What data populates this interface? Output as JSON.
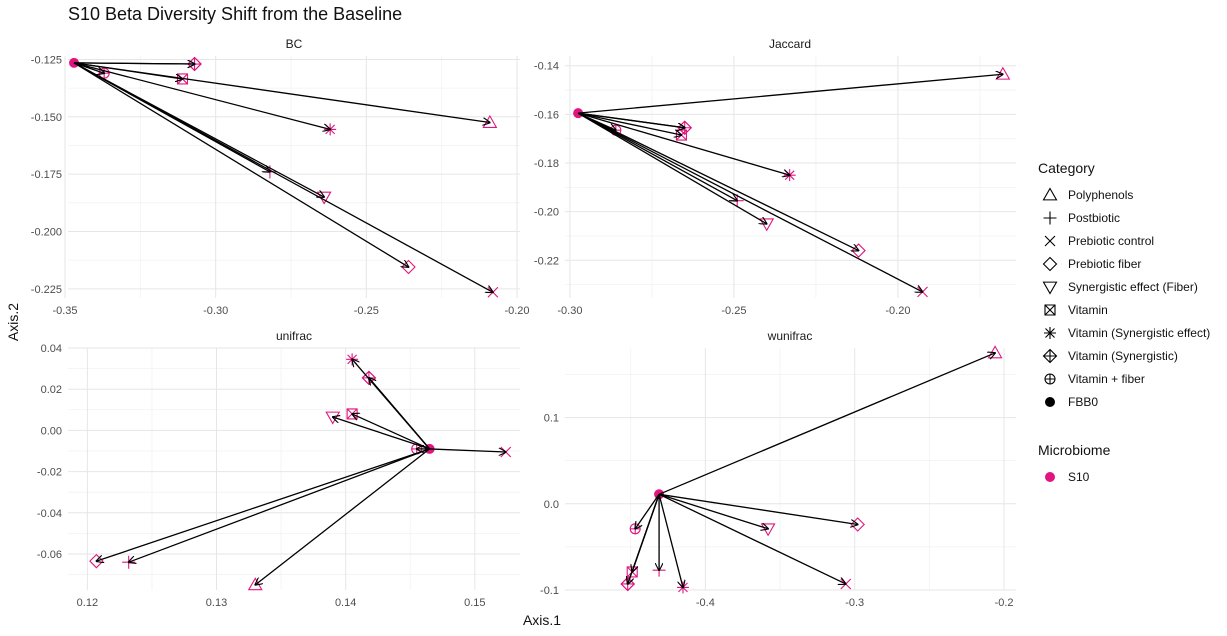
{
  "title": "S10 Beta Diversity Shift from the Baseline",
  "xlabel": "Axis.1",
  "ylabel": "Axis.2",
  "colors": {
    "point": "#e0157f",
    "arrow": "#000000",
    "grid_major": "#e6e6e6",
    "grid_minor": "#f2f2f2"
  },
  "legend": {
    "category_title": "Category",
    "categories": [
      {
        "label": "Polyphenols",
        "shape": "triangle-up"
      },
      {
        "label": "Postbiotic",
        "shape": "plus"
      },
      {
        "label": "Prebiotic control",
        "shape": "cross"
      },
      {
        "label": "Prebiotic fiber",
        "shape": "diamond"
      },
      {
        "label": "Synergistic effect (Fiber)",
        "shape": "triangle-down"
      },
      {
        "label": "Vitamin",
        "shape": "square-cross"
      },
      {
        "label": "Vitamin (Synergistic effect)",
        "shape": "asterisk"
      },
      {
        "label": "Vitamin (Synergistic)",
        "shape": "diamond-plus"
      },
      {
        "label": "Vitamin + fiber",
        "shape": "circle-plus"
      },
      {
        "label": "FBB0",
        "shape": "dot"
      }
    ],
    "microbiome_title": "Microbiome",
    "microbiome": [
      {
        "label": "S10",
        "color": "#e0157f"
      }
    ]
  },
  "chart_data": [
    {
      "type": "scatter",
      "panel": "BC",
      "xlim": [
        -0.349,
        -0.199
      ],
      "ylim": [
        -0.229,
        -0.1235
      ],
      "xticks": [
        -0.35,
        -0.3,
        -0.25,
        -0.2
      ],
      "xtick_labels": [
        "-0.35",
        "-0.30",
        "-0.25",
        "-0.20"
      ],
      "yticks": [
        -0.125,
        -0.15,
        -0.175,
        -0.2,
        -0.225
      ],
      "ytick_labels": [
        "-0.125",
        "-0.150",
        "-0.175",
        "-0.200",
        "-0.225"
      ],
      "baseline": {
        "x": -0.347,
        "y": -0.1265
      },
      "points": [
        {
          "category": "Polyphenols",
          "x": -0.209,
          "y": -0.1525
        },
        {
          "category": "Postbiotic",
          "x": -0.282,
          "y": -0.174
        },
        {
          "category": "Prebiotic control",
          "x": -0.208,
          "y": -0.2265
        },
        {
          "category": "Prebiotic fiber",
          "x": -0.307,
          "y": -0.127
        },
        {
          "category": "Prebiotic fiber",
          "x": -0.236,
          "y": -0.2155
        },
        {
          "category": "Synergistic effect (Fiber)",
          "x": -0.264,
          "y": -0.185
        },
        {
          "category": "Vitamin",
          "x": -0.311,
          "y": -0.1335
        },
        {
          "category": "Vitamin (Synergistic effect)",
          "x": -0.262,
          "y": -0.1555
        },
        {
          "category": "Vitamin (Synergistic)",
          "x": -0.307,
          "y": -0.127
        },
        {
          "category": "Vitamin + fiber",
          "x": -0.337,
          "y": -0.131
        }
      ]
    },
    {
      "type": "scatter",
      "panel": "Jaccard",
      "xlim": [
        -0.3015,
        -0.164
      ],
      "ylim": [
        -0.2355,
        -0.136
      ],
      "xticks": [
        -0.3,
        -0.25,
        -0.2
      ],
      "xtick_labels": [
        "-0.30",
        "-0.25",
        "-0.20"
      ],
      "yticks": [
        -0.14,
        -0.16,
        -0.18,
        -0.2,
        -0.22
      ],
      "ytick_labels": [
        "-0.14",
        "-0.16",
        "-0.18",
        "-0.20",
        "-0.22"
      ],
      "baseline": {
        "x": -0.2975,
        "y": -0.1595
      },
      "points": [
        {
          "category": "Polyphenols",
          "x": -0.168,
          "y": -0.1435
        },
        {
          "category": "Postbiotic",
          "x": -0.249,
          "y": -0.1955
        },
        {
          "category": "Prebiotic control",
          "x": -0.1925,
          "y": -0.233
        },
        {
          "category": "Prebiotic fiber",
          "x": -0.265,
          "y": -0.1655
        },
        {
          "category": "Prebiotic fiber",
          "x": -0.212,
          "y": -0.216
        },
        {
          "category": "Synergistic effect (Fiber)",
          "x": -0.24,
          "y": -0.205
        },
        {
          "category": "Vitamin",
          "x": -0.266,
          "y": -0.1685
        },
        {
          "category": "Vitamin (Synergistic effect)",
          "x": -0.233,
          "y": -0.185
        },
        {
          "category": "Vitamin (Synergistic)",
          "x": -0.265,
          "y": -0.1655
        },
        {
          "category": "Vitamin + fiber",
          "x": -0.286,
          "y": -0.1665
        }
      ]
    },
    {
      "type": "scatter",
      "panel": "unifrac",
      "xlim": [
        0.1185,
        0.1535
      ],
      "ylim": [
        -0.0775,
        0.04
      ],
      "xticks": [
        0.12,
        0.13,
        0.14,
        0.15
      ],
      "xtick_labels": [
        "0.12",
        "0.13",
        "0.14",
        "0.15"
      ],
      "yticks": [
        0.04,
        0.02,
        0.0,
        -0.02,
        -0.04,
        -0.06
      ],
      "ytick_labels": [
        "0.04",
        "0.02",
        "0.00",
        "-0.02",
        "-0.04",
        "-0.06"
      ],
      "baseline": {
        "x": 0.1465,
        "y": -0.009
      },
      "points": [
        {
          "category": "Polyphenols",
          "x": 0.133,
          "y": -0.075
        },
        {
          "category": "Postbiotic",
          "x": 0.1232,
          "y": -0.064
        },
        {
          "category": "Prebiotic control",
          "x": 0.1524,
          "y": -0.0105
        },
        {
          "category": "Prebiotic fiber",
          "x": 0.1207,
          "y": -0.0635
        },
        {
          "category": "Prebiotic fiber",
          "x": 0.1418,
          "y": 0.0255
        },
        {
          "category": "Synergistic effect (Fiber)",
          "x": 0.139,
          "y": 0.0065
        },
        {
          "category": "Vitamin",
          "x": 0.1405,
          "y": 0.008
        },
        {
          "category": "Vitamin (Synergistic effect)",
          "x": 0.1405,
          "y": 0.0345
        },
        {
          "category": "Vitamin (Synergistic)",
          "x": 0.1418,
          "y": 0.0255
        },
        {
          "category": "Vitamin + fiber",
          "x": 0.1455,
          "y": -0.009
        }
      ]
    },
    {
      "type": "scatter",
      "panel": "wunifrac",
      "xlim": [
        -0.494,
        -0.192
      ],
      "ylim": [
        -0.1,
        0.1807
      ],
      "xticks": [
        -0.4,
        -0.3,
        -0.2
      ],
      "xtick_labels": [
        "-0.4",
        "-0.3",
        "-0.2"
      ],
      "yticks": [
        0.1,
        0.0,
        -0.1
      ],
      "ytick_labels": [
        "0.1",
        "0.0",
        "-0.1"
      ],
      "baseline": {
        "x": -0.431,
        "y": 0.011
      },
      "points": [
        {
          "category": "Polyphenols",
          "x": -0.206,
          "y": 0.175
        },
        {
          "category": "Postbiotic",
          "x": -0.431,
          "y": -0.077
        },
        {
          "category": "Prebiotic control",
          "x": -0.306,
          "y": -0.093
        },
        {
          "category": "Prebiotic fiber",
          "x": -0.452,
          "y": -0.093
        },
        {
          "category": "Prebiotic fiber",
          "x": -0.298,
          "y": -0.024
        },
        {
          "category": "Synergistic effect (Fiber)",
          "x": -0.358,
          "y": -0.029
        },
        {
          "category": "Vitamin",
          "x": -0.449,
          "y": -0.079
        },
        {
          "category": "Vitamin (Synergistic effect)",
          "x": -0.415,
          "y": -0.097
        },
        {
          "category": "Vitamin (Synergistic)",
          "x": -0.452,
          "y": -0.093
        },
        {
          "category": "Vitamin + fiber",
          "x": -0.447,
          "y": -0.029
        }
      ]
    }
  ]
}
